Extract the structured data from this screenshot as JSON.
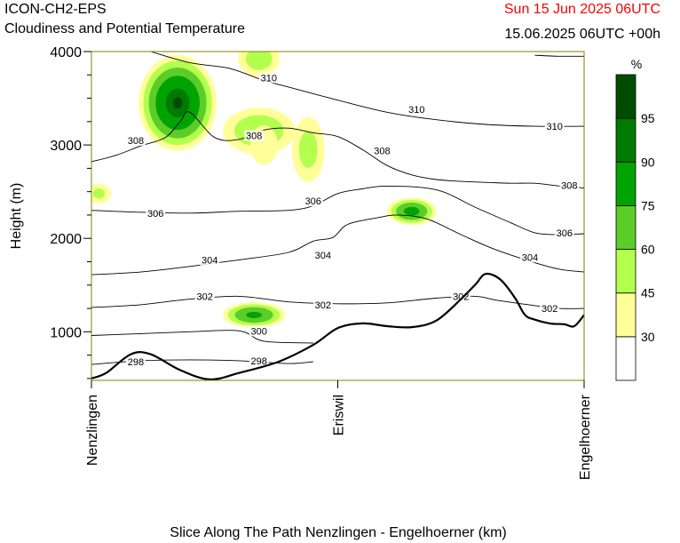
{
  "header": {
    "model": "ICON-CH2-EPS",
    "title": "Cloudiness and Potential Temperature",
    "valid_time": "Sun 15 Jun 2025 06UTC",
    "run": "15.06.2025 06UTC +00h"
  },
  "colors": {
    "valid_time": "#ff0000",
    "terrain": "#000000",
    "isentrope": "#000000",
    "axis_frame": "#808000"
  },
  "chart_data": {
    "type": "contour",
    "xlabel": "Slice Along The Path Nenzlingen - Engelhoerner (km)",
    "ylabel": "Height (m)",
    "ylim": [
      480,
      4000
    ],
    "xlim": [
      0,
      1
    ],
    "y_ticks": [
      "1000",
      "2000",
      "3000",
      "4000"
    ],
    "x_ticks": [
      {
        "label": "Nenzlingen",
        "x": 0.0
      },
      {
        "label": "Eriswil",
        "x": 0.5
      },
      {
        "label": "Engelhoerner",
        "x": 1.0
      }
    ],
    "colorbar": {
      "unit": "%",
      "labels": [
        "30",
        "45",
        "60",
        "75",
        "90",
        "95"
      ],
      "bins": [
        {
          "from": 0,
          "to": 30,
          "color": "#ffffff"
        },
        {
          "from": 30,
          "to": 45,
          "color": "#ffff99"
        },
        {
          "from": 45,
          "to": 60,
          "color": "#b2ff4d"
        },
        {
          "from": 60,
          "to": 75,
          "color": "#5ccc29"
        },
        {
          "from": 75,
          "to": 90,
          "color": "#00a300"
        },
        {
          "from": 90,
          "to": 95,
          "color": "#007a00"
        },
        {
          "from": 95,
          "to": 100,
          "color": "#004d00"
        }
      ]
    },
    "terrain": {
      "x": [
        0.0,
        0.03,
        0.08,
        0.12,
        0.18,
        0.24,
        0.3,
        0.38,
        0.45,
        0.5,
        0.55,
        0.6,
        0.65,
        0.7,
        0.75,
        0.78,
        0.8,
        0.83,
        0.86,
        0.88,
        0.9,
        0.93,
        0.96,
        0.98,
        1.0
      ],
      "height": [
        500,
        560,
        760,
        760,
        590,
        490,
        560,
        680,
        860,
        1040,
        1090,
        1060,
        1050,
        1120,
        1350,
        1510,
        1620,
        1560,
        1360,
        1180,
        1130,
        1090,
        1080,
        1060,
        1180
      ]
    },
    "isentropes": [
      {
        "label": "298",
        "x": [
          0.0,
          0.1,
          0.2,
          0.3,
          0.4,
          0.45
        ],
        "height": [
          650,
          690,
          700,
          690,
          660,
          680
        ],
        "label_at": [
          [
            0.09,
            680
          ],
          [
            0.34,
            690
          ]
        ]
      },
      {
        "label": "300",
        "x": [
          0.0,
          0.1,
          0.2,
          0.3,
          0.35,
          0.45
        ],
        "height": [
          960,
          980,
          1000,
          1010,
          900,
          880
        ],
        "label_at": [
          [
            0.34,
            1010
          ]
        ]
      },
      {
        "label": "302",
        "x": [
          0.0,
          0.1,
          0.2,
          0.3,
          0.4,
          0.5,
          0.6,
          0.7,
          0.78,
          0.82,
          0.9,
          0.95,
          1.0
        ],
        "height": [
          1260,
          1290,
          1350,
          1380,
          1320,
          1300,
          1310,
          1360,
          1380,
          1340,
          1280,
          1250,
          1250
        ],
        "label_at": [
          [
            0.23,
            1380
          ],
          [
            0.47,
            1290
          ],
          [
            0.75,
            1380
          ],
          [
            0.93,
            1250
          ]
        ]
      },
      {
        "label": "304",
        "x": [
          0.0,
          0.1,
          0.2,
          0.3,
          0.4,
          0.45,
          0.49,
          0.52,
          0.58,
          0.62,
          0.68,
          0.75,
          0.82,
          0.9,
          0.95,
          1.0
        ],
        "height": [
          1610,
          1640,
          1700,
          1770,
          1850,
          1970,
          2010,
          2150,
          2220,
          2250,
          2210,
          2040,
          1880,
          1740,
          1670,
          1640
        ],
        "label_at": [
          [
            0.24,
            1770
          ],
          [
            0.47,
            1820
          ],
          [
            0.89,
            1800
          ]
        ]
      },
      {
        "label": "306",
        "x": [
          0.0,
          0.1,
          0.2,
          0.3,
          0.4,
          0.45,
          0.5,
          0.55,
          0.6,
          0.7,
          0.78,
          0.85,
          0.9,
          0.95,
          1.0
        ],
        "height": [
          2300,
          2280,
          2270,
          2290,
          2300,
          2350,
          2480,
          2530,
          2560,
          2520,
          2330,
          2170,
          2060,
          2040,
          2050
        ],
        "label_at": [
          [
            0.13,
            2270
          ],
          [
            0.45,
            2400
          ],
          [
            0.96,
            2060
          ]
        ]
      },
      {
        "label": "308",
        "x": [
          0.0,
          0.05,
          0.1,
          0.15,
          0.18,
          0.2,
          0.25,
          0.3,
          0.35,
          0.4,
          0.45,
          0.5,
          0.55,
          0.6,
          0.65,
          0.7,
          0.75,
          0.8,
          0.85,
          0.9,
          0.95,
          1.0
        ],
        "height": [
          2820,
          2890,
          2990,
          3080,
          3250,
          3350,
          3080,
          3060,
          3160,
          3180,
          3130,
          3090,
          2950,
          2780,
          2680,
          2630,
          2610,
          2600,
          2590,
          2590,
          2560,
          2540
        ],
        "label_at": [
          [
            0.09,
            3050
          ],
          [
            0.33,
            3100
          ],
          [
            0.59,
            2940
          ],
          [
            0.97,
            2570
          ]
        ]
      },
      {
        "label": "310",
        "x": [
          0.12,
          0.2,
          0.28,
          0.35,
          0.4,
          0.5,
          0.6,
          0.7,
          0.8,
          0.9,
          1.0
        ],
        "height": [
          4000,
          3880,
          3820,
          3690,
          3620,
          3480,
          3350,
          3270,
          3220,
          3200,
          3200
        ],
        "label_at": [
          [
            0.36,
            3720
          ],
          [
            0.66,
            3380
          ],
          [
            0.94,
            3200
          ]
        ]
      },
      {
        "label": "",
        "x": [
          0.9,
          0.95,
          1.0
        ],
        "height": [
          3960,
          3950,
          3950
        ],
        "label_at": []
      }
    ],
    "cloud_cells": [
      {
        "x": 0.175,
        "height": 3450,
        "peak": 96,
        "rx": 0.085,
        "rh": 550
      },
      {
        "x": 0.34,
        "height": 3150,
        "peak": 58,
        "rx": 0.085,
        "rh": 290
      },
      {
        "x": 0.44,
        "height": 2950,
        "peak": 52,
        "rx": 0.04,
        "rh": 420
      },
      {
        "x": 0.35,
        "height": 3000,
        "peak": 40,
        "rx": 0.04,
        "rh": 300
      },
      {
        "x": 0.33,
        "height": 1180,
        "peak": 78,
        "rx": 0.07,
        "rh": 150
      },
      {
        "x": 0.65,
        "height": 2290,
        "peak": 80,
        "rx": 0.055,
        "rh": 160
      },
      {
        "x": 0.015,
        "height": 2480,
        "peak": 50,
        "rx": 0.03,
        "rh": 130
      },
      {
        "x": 0.34,
        "height": 3920,
        "peak": 55,
        "rx": 0.05,
        "rh": 220
      }
    ]
  }
}
